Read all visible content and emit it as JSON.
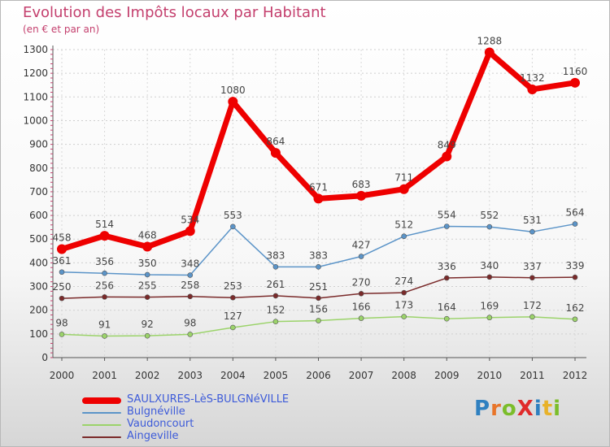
{
  "title": "Evolution des Impôts locaux par Habitant",
  "subtitle": "(en € et par an)",
  "logo_text": "ProXiti",
  "chart_data": {
    "type": "line",
    "title": "Evolution des Impôts locaux par Habitant",
    "subtitle": "(en € et par an)",
    "x": [
      "2000",
      "2001",
      "2002",
      "2003",
      "2004",
      "2005",
      "2006",
      "2007",
      "2008",
      "2009",
      "2010",
      "2011",
      "2012"
    ],
    "ylim": [
      0,
      1300
    ],
    "yticks": [
      0,
      100,
      200,
      300,
      400,
      500,
      600,
      700,
      800,
      900,
      1000,
      1100,
      1200,
      1300
    ],
    "grid": true,
    "legend_position": "bottom-left",
    "series": [
      {
        "name": "SAULXURES-LèS-BULGNéVILLE",
        "color": "#ee0000",
        "width": 7,
        "values": [
          458,
          514,
          468,
          534,
          1080,
          864,
          671,
          683,
          711,
          849,
          1288,
          1132,
          1160
        ]
      },
      {
        "name": "Bulgnéville",
        "color": "#5b94c8",
        "width": 1.5,
        "values": [
          361,
          356,
          350,
          348,
          553,
          383,
          383,
          427,
          512,
          554,
          552,
          531,
          564
        ]
      },
      {
        "name": "Vaudoncourt",
        "color": "#9bd36a",
        "width": 1.5,
        "values": [
          98,
          91,
          92,
          98,
          127,
          152,
          156,
          166,
          173,
          164,
          169,
          172,
          162
        ]
      },
      {
        "name": "Aingeville",
        "color": "#7a2a2a",
        "width": 1.5,
        "values": [
          250,
          256,
          255,
          258,
          253,
          261,
          251,
          270,
          274,
          336,
          340,
          337,
          339
        ]
      }
    ]
  }
}
